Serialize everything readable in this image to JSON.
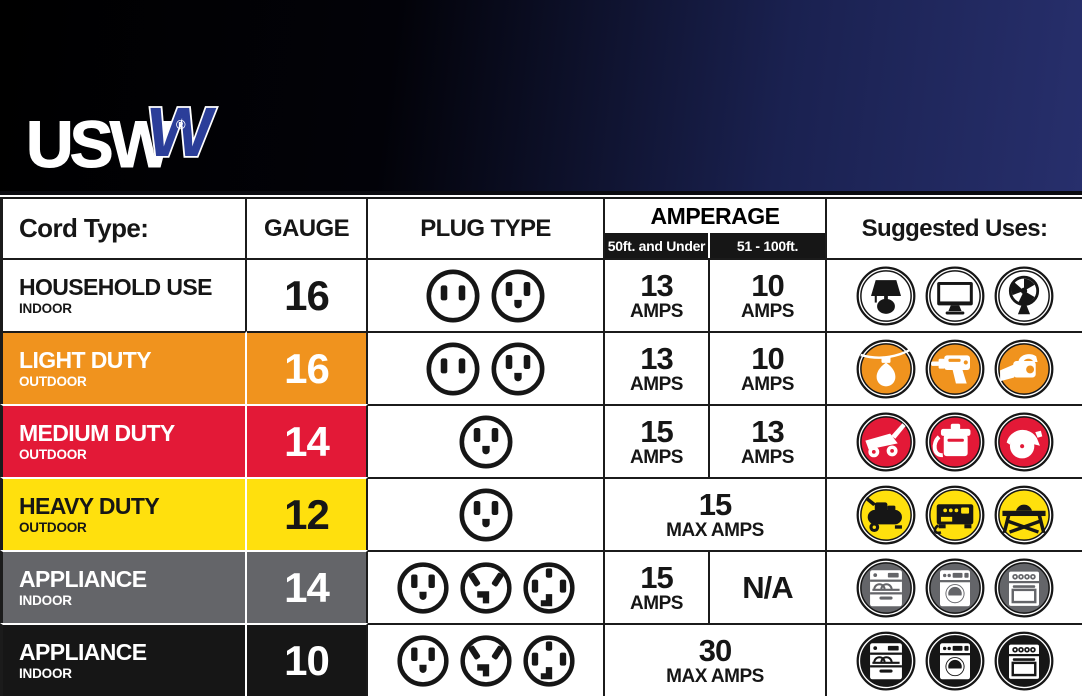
{
  "brand": {
    "logo": "USW",
    "logo_w": "W",
    "registered": "®"
  },
  "colors": {
    "banner_navy": "#272f6c",
    "line_dark": "#1b1b1b",
    "orange": "#F0931E",
    "red": "#E31937",
    "yellow": "#FFE00D",
    "gray": "#646569",
    "black": "#161616",
    "white": "#ffffff"
  },
  "table": {
    "header": {
      "cord_type": "Cord Type:",
      "gauge": "GAUGE",
      "plug_type": "PLUG TYPE",
      "amperage": "AMPERAGE",
      "amperage_sub_1": "50ft. and Under",
      "amperage_sub_2": "51 - 100ft.",
      "suggested_uses": "Suggested Uses:"
    },
    "rows": [
      {
        "name": "HOUSEHOLD USE",
        "sub": "INDOOR",
        "bg": "#ffffff",
        "fg": "#161616",
        "gauge": "16",
        "plugs": [
          "plug-two-prong-icon",
          "plug-three-prong-icon"
        ],
        "amp_span": false,
        "amp1": "13",
        "amp1_unit": "AMPS",
        "amp2": "10",
        "amp2_unit": "AMPS",
        "uses": [
          "table-lamp-icon",
          "monitor-icon",
          "desk-fan-icon"
        ],
        "use_bg": "#ffffff",
        "use_fg": "#161616"
      },
      {
        "name": "LIGHT DUTY",
        "sub": "OUTDOOR",
        "bg": "#F0931E",
        "fg": "#ffffff",
        "gauge": "16",
        "plugs": [
          "plug-two-prong-icon",
          "plug-three-prong-icon"
        ],
        "amp_span": false,
        "amp1": "13",
        "amp1_unit": "AMPS",
        "amp2": "10",
        "amp2_unit": "AMPS",
        "uses": [
          "string-light-icon",
          "drill-icon",
          "leaf-blower-icon"
        ],
        "use_bg": "#F0931E",
        "use_fg": "#ffffff"
      },
      {
        "name": "MEDIUM DUTY",
        "sub": "OUTDOOR",
        "bg": "#E31937",
        "fg": "#ffffff",
        "gauge": "14",
        "plugs": [
          "plug-three-prong-icon"
        ],
        "amp_span": false,
        "amp1": "15",
        "amp1_unit": "AMPS",
        "amp2": "13",
        "amp2_unit": "AMPS",
        "uses": [
          "lawn-mower-icon",
          "shop-vacuum-icon",
          "circular-saw-icon"
        ],
        "use_bg": "#E31937",
        "use_fg": "#ffffff"
      },
      {
        "name": "HEAVY DUTY",
        "sub": "OUTDOOR",
        "bg": "#FFE00D",
        "fg": "#161616",
        "gauge": "12",
        "plugs": [
          "plug-three-prong-icon"
        ],
        "amp_span": true,
        "amp": "15",
        "amp_unit": "MAX AMPS",
        "uses": [
          "air-compressor-icon",
          "generator-icon",
          "table-saw-icon"
        ],
        "use_bg": "#FFE00D",
        "use_fg": "#161616"
      },
      {
        "name": "APPLIANCE",
        "sub": "INDOOR",
        "bg": "#646569",
        "fg": "#ffffff",
        "gauge": "14",
        "plugs": [
          "plug-three-prong-icon",
          "plug-angled-three-prong-icon",
          "plug-four-prong-icon"
        ],
        "amp_span": false,
        "amp1": "15",
        "amp1_unit": "AMPS",
        "amp2": "N/A",
        "amp2_unit": "",
        "uses": [
          "dishwasher-icon",
          "washing-machine-icon",
          "stove-icon"
        ],
        "use_bg": "#646569",
        "use_fg": "#ffffff"
      },
      {
        "name": "APPLIANCE",
        "sub": "INDOOR",
        "bg": "#161616",
        "fg": "#ffffff",
        "gauge": "10",
        "plugs": [
          "plug-three-prong-icon",
          "plug-angled-three-prong-icon",
          "plug-four-prong-icon"
        ],
        "amp_span": true,
        "amp": "30",
        "amp_unit": "MAX AMPS",
        "uses": [
          "dishwasher-icon",
          "washing-machine-icon",
          "stove-icon"
        ],
        "use_bg": "#161616",
        "use_fg": "#ffffff"
      }
    ]
  },
  "chart_data": {
    "type": "table",
    "title": "USW extension cord selection chart",
    "columns": [
      "Cord Type",
      "Gauge",
      "Plug Type",
      "Amperage (50ft. and Under)",
      "Amperage (51 - 100ft.)",
      "Suggested Uses"
    ],
    "rows": [
      [
        "HOUSEHOLD USE (INDOOR)",
        "16",
        "two-prong, three-prong",
        "13 AMPS",
        "10 AMPS",
        "table lamp, monitor, desk fan"
      ],
      [
        "LIGHT DUTY (OUTDOOR)",
        "16",
        "two-prong, three-prong",
        "13 AMPS",
        "10 AMPS",
        "string lights, drill, leaf blower"
      ],
      [
        "MEDIUM DUTY (OUTDOOR)",
        "14",
        "three-prong",
        "15 AMPS",
        "13 AMPS",
        "lawn mower, shop vacuum, circular saw"
      ],
      [
        "HEAVY DUTY (OUTDOOR)",
        "12",
        "three-prong",
        "15 MAX AMPS",
        "15 MAX AMPS",
        "air compressor, generator, table saw"
      ],
      [
        "APPLIANCE (INDOOR)",
        "14",
        "three-prong, angled three-prong, four-prong",
        "15 AMPS",
        "N/A",
        "dishwasher, washing machine, stove"
      ],
      [
        "APPLIANCE (INDOOR)",
        "10",
        "three-prong, angled three-prong, four-prong",
        "30 MAX AMPS",
        "30 MAX AMPS",
        "dishwasher, washing machine, stove"
      ]
    ]
  }
}
